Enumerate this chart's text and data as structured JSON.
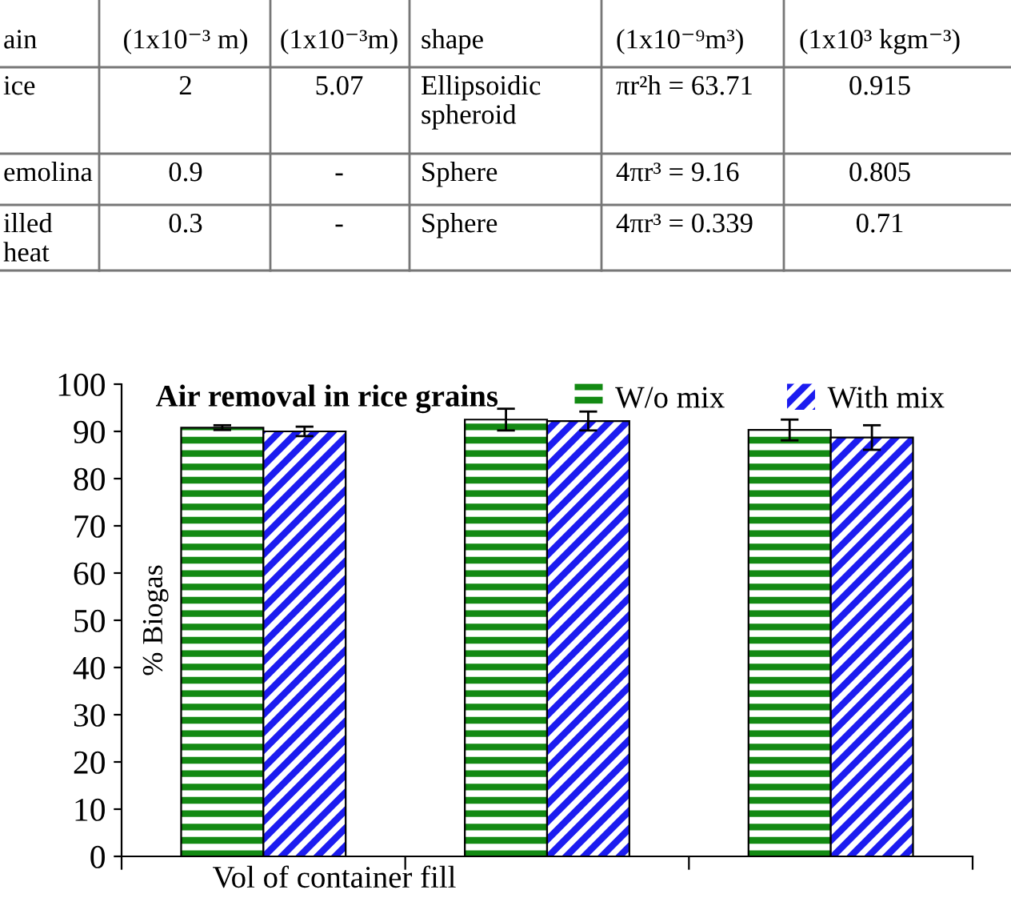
{
  "chart_data": {
    "type": "bar",
    "title": "Air removal in rice grains",
    "xlabel": "Vol of container fill",
    "ylabel": "% Biogas",
    "categories": [
      null,
      null,
      null
    ],
    "series": [
      {
        "name": "W/o mix",
        "color": "#138a13",
        "values": [
          90.8,
          92.5,
          90.3
        ],
        "errors": [
          0.5,
          2.3,
          2.2
        ]
      },
      {
        "name": "With mix",
        "color": "#1c1cf0",
        "values": [
          90.0,
          92.2,
          88.7
        ],
        "errors": [
          1.0,
          2.0,
          2.6
        ]
      }
    ],
    "ylim": [
      0,
      100
    ],
    "yticks": [
      0,
      10,
      20,
      30,
      40,
      50,
      60,
      70,
      80,
      90,
      100
    ],
    "grid": false,
    "legend": "top right",
    "annotations": [
      "ain",
      "(1x10⁻³ m)",
      "(1x10⁻³m)",
      "shape",
      "(1x10⁻⁹m³)",
      "(1x10³ kgm⁻³)",
      "ice",
      "2",
      "5.07",
      "Ellipsoidic\nspheroid",
      "πr²h = 63.71",
      "0.915",
      "emolina",
      "0.9",
      "-",
      "Sphere",
      "4πr³ = 9.16",
      "0.805",
      "illed\nheat",
      "0.3",
      "-",
      "Sphere",
      "4πr³ = 0.339",
      "0.71"
    ]
  }
}
